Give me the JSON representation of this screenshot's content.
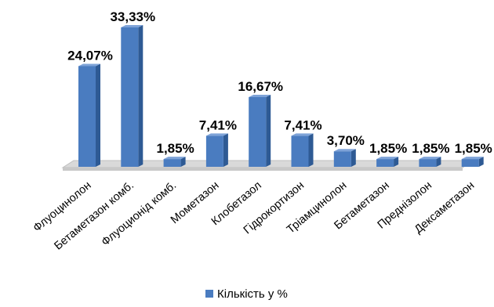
{
  "chart_data": {
    "type": "bar",
    "categories": [
      "Флуоцинолон",
      "Бетаметазон комб.",
      "Флуоционід комб.",
      "Мометазон",
      "Клобетазол",
      "Гідрокортизон",
      "Тріамцинолон",
      "Бетаметазон",
      "Преднізолон",
      "Дексаметазон"
    ],
    "series": [
      {
        "name": "Кількість у %",
        "values": [
          24.07,
          33.33,
          1.85,
          7.41,
          16.67,
          7.41,
          3.7,
          1.85,
          1.85,
          1.85
        ],
        "data_labels": [
          "24,07%",
          "33,33%",
          "1,85%",
          "7,41%",
          "16,67%",
          "7,41%",
          "3,70%",
          "1,85%",
          "1,85%",
          "1,85%"
        ]
      }
    ],
    "ylim": [
      0,
      33.33
    ],
    "grid": false,
    "legend_position": "bottom",
    "colors": {
      "bar_front": "#4a7cc0",
      "bar_side": "#2e5a94",
      "bar_top": "#7ea3d8",
      "floor": "#d9d9d9"
    }
  }
}
